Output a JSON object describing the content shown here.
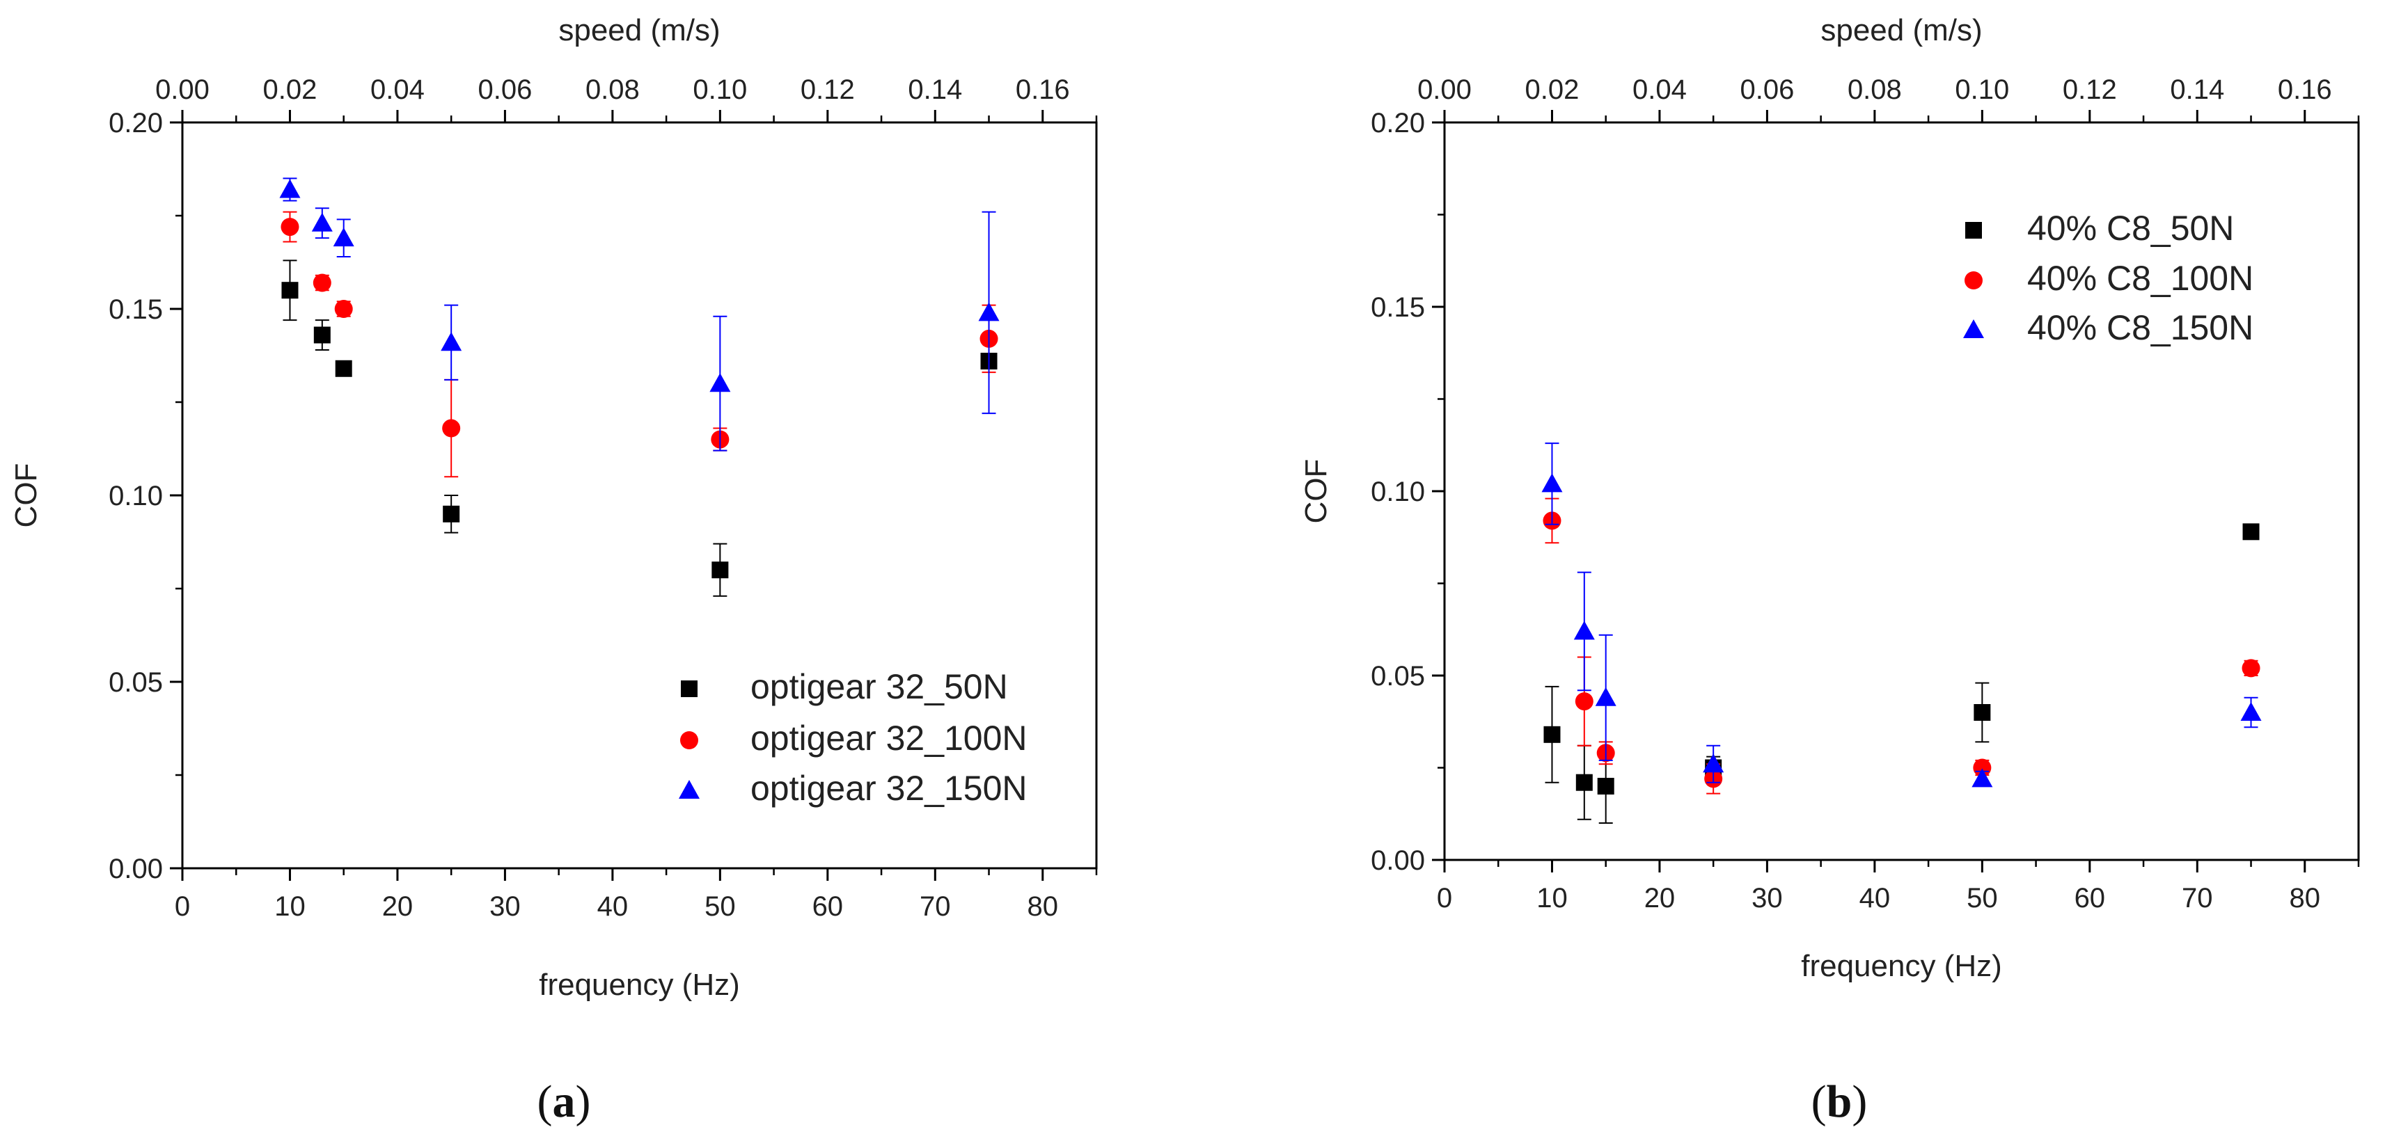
{
  "chart_data": [
    {
      "type": "scatter",
      "panel_label": "(a)",
      "panel_letter": "a",
      "xlabel": "frequency (Hz)",
      "ylabel": "COF",
      "x2label": "speed (m/s)",
      "xlim": [
        0,
        85
      ],
      "ylim": [
        0,
        0.2
      ],
      "x2lim": [
        0,
        0.17
      ],
      "xticks": [
        "0",
        "10",
        "20",
        "30",
        "40",
        "50",
        "60",
        "70",
        "80"
      ],
      "yticks": [
        "0.00",
        "0.05",
        "0.10",
        "0.15",
        "0.20"
      ],
      "x2ticks": [
        "0.00",
        "0.02",
        "0.04",
        "0.06",
        "0.08",
        "0.10",
        "0.12",
        "0.14",
        "0.16"
      ],
      "legend_position": "bottom-right",
      "series": [
        {
          "name": "optigear 32_50N",
          "marker": "square",
          "color": "#000000",
          "x": [
            10,
            13,
            15,
            25,
            50,
            75
          ],
          "y": [
            0.155,
            0.143,
            0.134,
            0.095,
            0.08,
            0.136
          ],
          "err": [
            0.008,
            0.004,
            0.002,
            0.005,
            0.007,
            0.002
          ]
        },
        {
          "name": "optigear 32_100N",
          "marker": "circle",
          "color": "#ff0000",
          "x": [
            10,
            13,
            15,
            25,
            50,
            75
          ],
          "y": [
            0.172,
            0.157,
            0.15,
            0.118,
            0.115,
            0.142
          ],
          "err": [
            0.004,
            0.002,
            0.002,
            0.013,
            0.003,
            0.009
          ]
        },
        {
          "name": "optigear 32_150N",
          "marker": "triangle",
          "color": "#0000ff",
          "x": [
            10,
            13,
            15,
            25,
            50,
            75
          ],
          "y": [
            0.182,
            0.173,
            0.169,
            0.141,
            0.13,
            0.149
          ],
          "err": [
            0.003,
            0.004,
            0.005,
            0.01,
            0.018,
            0.027
          ]
        }
      ]
    },
    {
      "type": "scatter",
      "panel_label": "(b)",
      "panel_letter": "b",
      "xlabel": "frequency (Hz)",
      "ylabel": "COF",
      "x2label": "speed (m/s)",
      "xlim": [
        0,
        85
      ],
      "ylim": [
        0,
        0.2
      ],
      "x2lim": [
        0,
        0.17
      ],
      "xticks": [
        "0",
        "10",
        "20",
        "30",
        "40",
        "50",
        "60",
        "70",
        "80"
      ],
      "yticks": [
        "0.00",
        "0.05",
        "0.10",
        "0.15",
        "0.20"
      ],
      "x2ticks": [
        "0.00",
        "0.02",
        "0.04",
        "0.06",
        "0.08",
        "0.10",
        "0.12",
        "0.14",
        "0.16"
      ],
      "legend_position": "top-right",
      "series": [
        {
          "name": "40% C8_50N",
          "marker": "square",
          "color": "#000000",
          "x": [
            10,
            13,
            15,
            25,
            50,
            75
          ],
          "y": [
            0.034,
            0.021,
            0.02,
            0.025,
            0.04,
            0.089
          ],
          "err": [
            0.013,
            0.01,
            0.01,
            0.003,
            0.008,
            0.001
          ]
        },
        {
          "name": "40% C8_100N",
          "marker": "circle",
          "color": "#ff0000",
          "x": [
            10,
            13,
            15,
            25,
            50,
            75
          ],
          "y": [
            0.092,
            0.043,
            0.029,
            0.022,
            0.025,
            0.052
          ],
          "err": [
            0.006,
            0.012,
            0.003,
            0.004,
            0.002,
            0.002
          ]
        },
        {
          "name": "40% C8_150N",
          "marker": "triangle",
          "color": "#0000ff",
          "x": [
            10,
            13,
            15,
            25,
            50,
            75
          ],
          "y": [
            0.102,
            0.062,
            0.044,
            0.026,
            0.022,
            0.04
          ],
          "err": [
            0.011,
            0.016,
            0.017,
            0.005,
            0.002,
            0.004
          ]
        }
      ]
    }
  ]
}
